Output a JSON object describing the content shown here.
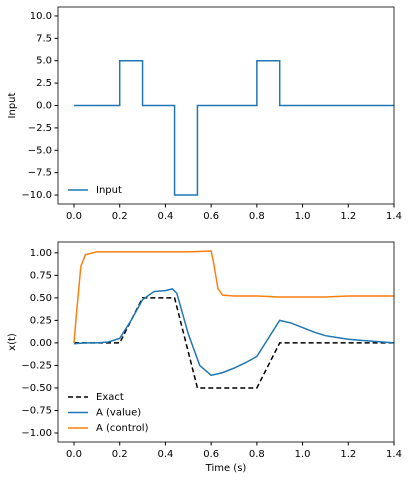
{
  "chart_data": [
    {
      "type": "line",
      "ylabel": "Input",
      "xlim": [
        -0.07,
        1.4
      ],
      "ylim": [
        -11,
        11
      ],
      "xticks": [
        {
          "value": 0,
          "label": "0.0"
        },
        0.2,
        0.4,
        0.6,
        0.8,
        {
          "value": 1,
          "label": "1.0"
        },
        1.2,
        1.4
      ],
      "yticks": [
        {
          "value": -10,
          "label": "−10.0"
        },
        {
          "value": -7.5,
          "label": "−7.5"
        },
        {
          "value": -5,
          "label": "−5.0"
        },
        {
          "value": -2.5,
          "label": "−2.5"
        },
        {
          "value": 0,
          "label": "0.0"
        },
        {
          "value": 2.5,
          "label": "2.5"
        },
        {
          "value": 5,
          "label": "5.0"
        },
        {
          "value": 7.5,
          "label": "7.5"
        },
        {
          "value": 10,
          "label": "10.0"
        }
      ],
      "legend": "lower left",
      "series": [
        {
          "name": "Input",
          "color": "#1f77b4",
          "linestyle": "solid",
          "x": [
            0,
            0.2,
            0.2,
            0.3,
            0.3,
            0.44,
            0.44,
            0.54,
            0.54,
            0.8,
            0.8,
            0.9,
            0.9,
            1.4
          ],
          "values": [
            0,
            0,
            5,
            5,
            0,
            0,
            -10,
            -10,
            0,
            0,
            5,
            5,
            0,
            0
          ]
        }
      ]
    },
    {
      "type": "line",
      "ylabel": "x(t)",
      "xlabel": "Time (s)",
      "xlim": [
        -0.07,
        1.4
      ],
      "ylim": [
        -1.1,
        1.12
      ],
      "xticks": [
        {
          "value": 0,
          "label": "0.0"
        },
        0.2,
        0.4,
        0.6,
        0.8,
        {
          "value": 1,
          "label": "1.0"
        },
        1.2,
        1.4
      ],
      "yticks": [
        {
          "value": -1,
          "label": "−1.00"
        },
        {
          "value": -0.75,
          "label": "−0.75"
        },
        {
          "value": -0.5,
          "label": "−0.50"
        },
        {
          "value": -0.25,
          "label": "−0.25"
        },
        {
          "value": 0,
          "label": "0.00"
        },
        {
          "value": 0.25,
          "label": "0.25"
        },
        {
          "value": 0.5,
          "label": "0.50"
        },
        {
          "value": 0.75,
          "label": "0.75"
        },
        {
          "value": 1,
          "label": "1.00"
        }
      ],
      "legend": "lower left",
      "series": [
        {
          "name": "Exact",
          "color": "#000000",
          "linestyle": "dashed",
          "x": [
            0,
            0.2,
            0.3,
            0.44,
            0.54,
            0.8,
            0.9,
            1.4
          ],
          "values": [
            0,
            0,
            0.5,
            0.5,
            -0.5,
            -0.5,
            0,
            0
          ]
        },
        {
          "name": "A (value)",
          "color": "#1f77b4",
          "linestyle": "solid",
          "x": [
            0,
            0.05,
            0.1,
            0.15,
            0.2,
            0.25,
            0.3,
            0.35,
            0.4,
            0.43,
            0.45,
            0.5,
            0.55,
            0.6,
            0.65,
            0.7,
            0.75,
            0.8,
            0.85,
            0.9,
            0.95,
            1,
            1.05,
            1.1,
            1.15,
            1.2,
            1.25,
            1.3,
            1.35,
            1.4
          ],
          "values": [
            -0.01,
            0,
            0,
            0.01,
            0.05,
            0.25,
            0.48,
            0.57,
            0.58,
            0.6,
            0.55,
            0.1,
            -0.25,
            -0.36,
            -0.33,
            -0.28,
            -0.22,
            -0.15,
            0.05,
            0.25,
            0.22,
            0.17,
            0.12,
            0.08,
            0.06,
            0.04,
            0.03,
            0.02,
            0.01,
            0
          ]
        },
        {
          "name": "A (control)",
          "color": "#ff7f0e",
          "linestyle": "solid",
          "x": [
            0,
            0.01,
            0.03,
            0.05,
            0.1,
            0.2,
            0.3,
            0.4,
            0.5,
            0.6,
            0.61,
            0.63,
            0.65,
            0.7,
            0.8,
            0.9,
            1,
            1.1,
            1.2,
            1.3,
            1.4
          ],
          "values": [
            0,
            0.3,
            0.85,
            0.98,
            1.01,
            1.01,
            1.01,
            1.01,
            1.01,
            1.02,
            0.9,
            0.6,
            0.53,
            0.52,
            0.52,
            0.51,
            0.51,
            0.51,
            0.52,
            0.52,
            0.52
          ]
        }
      ]
    }
  ]
}
